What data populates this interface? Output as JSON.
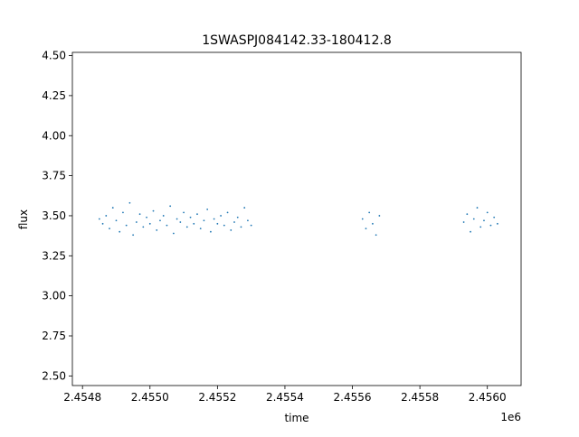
{
  "chart_data": {
    "type": "scatter",
    "title": "1SWASPJ084142.33-180412.8",
    "xlabel": "time",
    "ylabel": "flux",
    "x_offset_label": "1e6",
    "xlim": [
      2.45477,
      2.4561
    ],
    "ylim": [
      2.44,
      4.52
    ],
    "x_ticks": [
      2.4548,
      2.455,
      2.4552,
      2.4554,
      2.4556,
      2.4558,
      2.456
    ],
    "x_tick_labels": [
      "2.4548",
      "2.4550",
      "2.4552",
      "2.4554",
      "2.4556",
      "2.4558",
      "2.4560"
    ],
    "y_ticks": [
      2.5,
      2.75,
      3.0,
      3.25,
      3.5,
      3.75,
      4.0,
      4.25,
      4.5
    ],
    "y_tick_labels": [
      "2.50",
      "2.75",
      "3.00",
      "3.25",
      "3.50",
      "3.75",
      "4.00",
      "4.25",
      "4.50"
    ],
    "grid": false,
    "legend": "none",
    "marker_color": "#1f77b4",
    "series": [
      {
        "x": [
          2.45485,
          2.45486,
          2.45487,
          2.45488,
          2.45489,
          2.4549,
          2.45491,
          2.45492,
          2.45493,
          2.45494,
          2.45495,
          2.45496,
          2.45497,
          2.45498,
          2.45499,
          2.455,
          2.45501,
          2.45502,
          2.45503,
          2.45504,
          2.45505,
          2.45506,
          2.45507,
          2.45508,
          2.45509,
          2.4551,
          2.45511,
          2.45512,
          2.45513,
          2.45514,
          2.45515,
          2.45516,
          2.45517,
          2.45518,
          2.45519,
          2.4552,
          2.45521,
          2.45522,
          2.45523,
          2.45524,
          2.45525,
          2.45526,
          2.45527,
          2.45528,
          2.45529,
          2.4553
        ],
        "y": [
          3.48,
          3.45,
          3.5,
          3.42,
          3.55,
          3.47,
          3.4,
          3.52,
          3.44,
          3.58,
          3.38,
          3.46,
          3.51,
          3.43,
          3.49,
          3.45,
          3.53,
          3.41,
          3.47,
          3.5,
          3.44,
          3.56,
          3.39,
          3.48,
          3.46,
          3.52,
          3.43,
          3.49,
          3.45,
          3.51,
          3.42,
          3.47,
          3.54,
          3.4,
          3.48,
          3.45,
          3.5,
          3.44,
          3.52,
          3.41,
          3.46,
          3.49,
          3.43,
          3.55,
          3.47,
          3.44
        ]
      },
      {
        "x": [
          2.45563,
          2.45564,
          2.45565,
          2.45566,
          2.45567,
          2.45568
        ],
        "y": [
          3.48,
          3.42,
          3.52,
          3.45,
          3.38,
          3.5
        ]
      },
      {
        "x": [
          2.45593,
          2.45594,
          2.45595,
          2.45596,
          2.45597,
          2.45598,
          2.45599,
          2.456,
          2.45601,
          2.45602,
          2.45603
        ],
        "y": [
          3.46,
          3.51,
          3.4,
          3.48,
          3.55,
          3.43,
          3.47,
          3.52,
          3.44,
          3.49,
          3.45
        ]
      }
    ]
  }
}
